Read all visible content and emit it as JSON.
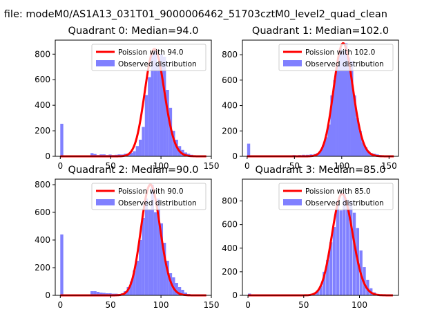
{
  "figure": {
    "suptitle": "n file: modeM0/AS1A13_031T01_9000006462_51703cztM0_level2_quad_clean"
  },
  "colors": {
    "hist": "#8080ff",
    "poisson": "#ff0000",
    "legend_border": "#cccccc"
  },
  "chart_data": [
    {
      "type": "bar",
      "title": "Quadrant 0: Median=94.0",
      "xlim": [
        -5,
        150
      ],
      "ylim": [
        0,
        910
      ],
      "xticks": [
        0,
        50,
        100,
        150
      ],
      "yticks": [
        0,
        200,
        400,
        600,
        800
      ],
      "median": 94.0,
      "bin_width": 3,
      "legend": {
        "placement": "upper-right",
        "line_label": "Poission with 94.0",
        "hist_label": "Observed distribution"
      },
      "bins": [
        [
          0,
          255
        ],
        [
          30,
          25
        ],
        [
          33,
          18
        ],
        [
          36,
          10
        ],
        [
          39,
          15
        ],
        [
          42,
          15
        ],
        [
          45,
          10
        ],
        [
          48,
          14
        ],
        [
          51,
          10
        ],
        [
          54,
          12
        ],
        [
          57,
          15
        ],
        [
          60,
          14
        ],
        [
          63,
          20
        ],
        [
          66,
          22
        ],
        [
          69,
          28
        ],
        [
          72,
          40
        ],
        [
          75,
          80
        ],
        [
          78,
          130
        ],
        [
          81,
          230
        ],
        [
          84,
          480
        ],
        [
          87,
          620
        ],
        [
          90,
          800
        ],
        [
          93,
          840
        ],
        [
          96,
          720
        ],
        [
          99,
          800
        ],
        [
          102,
          780
        ],
        [
          105,
          520
        ],
        [
          108,
          380
        ],
        [
          111,
          200
        ],
        [
          114,
          130
        ],
        [
          117,
          80
        ],
        [
          120,
          50
        ],
        [
          123,
          30
        ],
        [
          126,
          20
        ],
        [
          129,
          12
        ],
        [
          132,
          8
        ],
        [
          135,
          6
        ],
        [
          138,
          4
        ]
      ]
    },
    {
      "type": "bar",
      "title": "Quadrant 1: Median=102.0",
      "xlim": [
        -5,
        160
      ],
      "ylim": [
        0,
        915
      ],
      "xticks": [
        0,
        50,
        100,
        150
      ],
      "yticks": [
        0,
        200,
        400,
        600,
        800
      ],
      "median": 102.0,
      "bin_width": 3.2,
      "legend": {
        "placement": "upper-right",
        "line_label": "Poission with 102.0",
        "hist_label": "Observed distribution"
      },
      "bins": [
        [
          0,
          100
        ],
        [
          28,
          8
        ],
        [
          35,
          8
        ],
        [
          42,
          8
        ],
        [
          48,
          10
        ],
        [
          54,
          10
        ],
        [
          58,
          12
        ],
        [
          62,
          12
        ],
        [
          66,
          15
        ],
        [
          70,
          18
        ],
        [
          73,
          25
        ],
        [
          76,
          40
        ],
        [
          79,
          90
        ],
        [
          82,
          150
        ],
        [
          85,
          250
        ],
        [
          88,
          480
        ],
        [
          91,
          600
        ],
        [
          94,
          720
        ],
        [
          97,
          850
        ],
        [
          100,
          830
        ],
        [
          103,
          890
        ],
        [
          106,
          780
        ],
        [
          109,
          750
        ],
        [
          112,
          480
        ],
        [
          115,
          300
        ],
        [
          118,
          200
        ],
        [
          121,
          110
        ],
        [
          124,
          70
        ],
        [
          127,
          40
        ],
        [
          130,
          25
        ],
        [
          133,
          20
        ],
        [
          136,
          15
        ],
        [
          139,
          10
        ],
        [
          142,
          8
        ],
        [
          145,
          6
        ],
        [
          148,
          5
        ]
      ]
    },
    {
      "type": "bar",
      "title": "Quadrant 2: Median=90.0",
      "xlim": [
        -5,
        150
      ],
      "ylim": [
        0,
        840
      ],
      "xticks": [
        0,
        50,
        100,
        150
      ],
      "yticks": [
        0,
        200,
        400,
        600,
        800
      ],
      "median": 90.0,
      "bin_width": 3,
      "legend": {
        "placement": "upper-right",
        "line_label": "Poission with 90.0",
        "hist_label": "Observed distribution"
      },
      "bins": [
        [
          0,
          440
        ],
        [
          30,
          30
        ],
        [
          33,
          30
        ],
        [
          36,
          25
        ],
        [
          39,
          20
        ],
        [
          42,
          18
        ],
        [
          45,
          15
        ],
        [
          48,
          15
        ],
        [
          51,
          12
        ],
        [
          54,
          12
        ],
        [
          57,
          10
        ],
        [
          60,
          15
        ],
        [
          63,
          30
        ],
        [
          66,
          60
        ],
        [
          69,
          100
        ],
        [
          72,
          180
        ],
        [
          75,
          250
        ],
        [
          78,
          400
        ],
        [
          81,
          560
        ],
        [
          84,
          700
        ],
        [
          87,
          620
        ],
        [
          90,
          800
        ],
        [
          93,
          600
        ],
        [
          96,
          700
        ],
        [
          99,
          520
        ],
        [
          102,
          380
        ],
        [
          105,
          250
        ],
        [
          108,
          160
        ],
        [
          111,
          130
        ],
        [
          114,
          90
        ],
        [
          117,
          60
        ],
        [
          120,
          40
        ],
        [
          123,
          20
        ],
        [
          126,
          10
        ]
      ]
    },
    {
      "type": "bar",
      "title": "Quadrant 3: Median=85.0",
      "xlim": [
        -5,
        135
      ],
      "ylim": [
        0,
        985
      ],
      "xticks": [
        0,
        50,
        100
      ],
      "yticks": [
        0,
        200,
        400,
        600,
        800
      ],
      "median": 85.0,
      "bin_width": 2.7,
      "legend": {
        "placement": "upper-right",
        "line_label": "Poission with 85.0",
        "hist_label": "Observed distribution"
      },
      "bins": [
        [
          0,
          15
        ],
        [
          58,
          20
        ],
        [
          61,
          40
        ],
        [
          64,
          80
        ],
        [
          67,
          200
        ],
        [
          70,
          300
        ],
        [
          73,
          450
        ],
        [
          76,
          580
        ],
        [
          79,
          800
        ],
        [
          82,
          720
        ],
        [
          85,
          860
        ],
        [
          88,
          810
        ],
        [
          91,
          800
        ],
        [
          94,
          700
        ],
        [
          97,
          570
        ],
        [
          100,
          380
        ],
        [
          103,
          240
        ],
        [
          106,
          130
        ],
        [
          109,
          60
        ],
        [
          112,
          25
        ],
        [
          115,
          12
        ],
        [
          118,
          6
        ]
      ]
    }
  ]
}
